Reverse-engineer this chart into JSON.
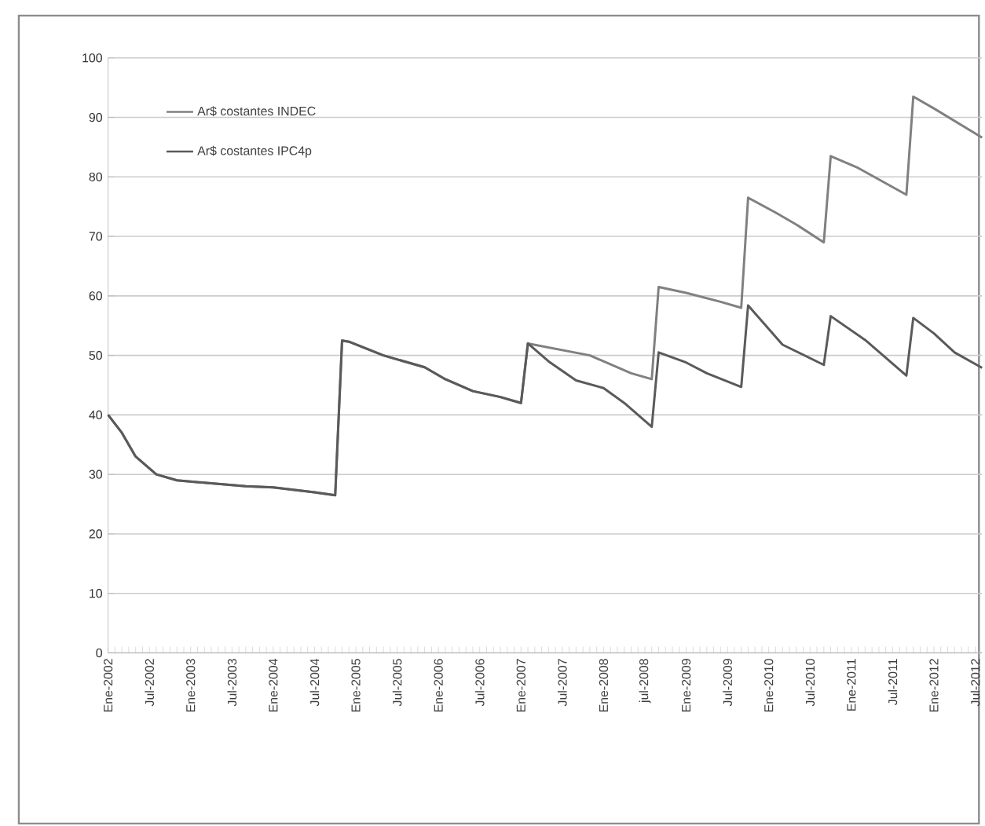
{
  "chart_data": {
    "type": "line",
    "xlim": [
      "2002-01",
      "2012-08"
    ],
    "ylim": [
      0,
      100
    ],
    "yticks": [
      0,
      10,
      20,
      30,
      40,
      50,
      60,
      70,
      80,
      90,
      100
    ],
    "xticks": [
      {
        "value": "2002-01",
        "label": "Ene-2002"
      },
      {
        "value": "2002-07",
        "label": "Jul-2002"
      },
      {
        "value": "2003-01",
        "label": "Ene-2003"
      },
      {
        "value": "2003-07",
        "label": "Jul-2003"
      },
      {
        "value": "2004-01",
        "label": "Ene-2004"
      },
      {
        "value": "2004-07",
        "label": "Jul-2004"
      },
      {
        "value": "2005-01",
        "label": "Ene-2005"
      },
      {
        "value": "2005-07",
        "label": "Jul-2005"
      },
      {
        "value": "2006-01",
        "label": "Ene-2006"
      },
      {
        "value": "2006-07",
        "label": "Jul-2006"
      },
      {
        "value": "2007-01",
        "label": "Ene-2007"
      },
      {
        "value": "2007-07",
        "label": "Jul-2007"
      },
      {
        "value": "2008-01",
        "label": "Ene-2008"
      },
      {
        "value": "2008-07",
        "label": "jul-2008"
      },
      {
        "value": "2009-01",
        "label": "Ene-2009"
      },
      {
        "value": "2009-07",
        "label": "Jul-2009"
      },
      {
        "value": "2010-01",
        "label": "Ene-2010"
      },
      {
        "value": "2010-07",
        "label": "Jul-2010"
      },
      {
        "value": "2011-01",
        "label": "Ene-2011"
      },
      {
        "value": "2011-07",
        "label": "Jul-2011"
      },
      {
        "value": "2012-01",
        "label": "Ene-2012"
      },
      {
        "value": "2012-07",
        "label": "Jul-2012"
      }
    ],
    "grid": "y",
    "legend": "top left",
    "marker": "none",
    "line_style": "solid",
    "series": [
      {
        "name": "Ar$ costantes INDEC",
        "color": "#808080",
        "x": [
          "2002-01",
          "2002-03",
          "2002-05",
          "2002-08",
          "2002-11",
          "2003-09",
          "2004-01",
          "2004-07",
          "2004-10",
          "2004-11",
          "2004-12",
          "2005-05",
          "2005-11",
          "2006-02",
          "2006-06",
          "2006-10",
          "2007-01",
          "2007-02",
          "2007-11",
          "2008-05",
          "2008-08",
          "2008-09",
          "2009-01",
          "2009-06",
          "2009-09",
          "2009-10",
          "2010-02",
          "2010-05",
          "2010-09",
          "2010-10",
          "2011-02",
          "2011-09",
          "2011-10",
          "2012-01",
          "2012-08"
        ],
        "values": [
          40,
          37,
          33,
          30,
          29,
          28,
          27.8,
          27,
          26.5,
          52.5,
          52.3,
          50,
          48,
          46,
          44,
          43,
          42,
          52,
          50,
          47,
          46,
          61.5,
          60.5,
          59,
          58,
          76.5,
          74,
          72,
          69,
          83.5,
          81.5,
          77,
          93.5,
          91.5,
          86.6
        ]
      },
      {
        "name": "Ar$ costantes IPC4p",
        "color": "#5a5a5a",
        "x": [
          "2002-01",
          "2002-03",
          "2002-05",
          "2002-08",
          "2002-11",
          "2003-09",
          "2004-01",
          "2004-07",
          "2004-10",
          "2004-11",
          "2004-12",
          "2005-05",
          "2005-11",
          "2006-02",
          "2006-06",
          "2006-10",
          "2007-01",
          "2007-02",
          "2007-05",
          "2007-09",
          "2008-01",
          "2008-04",
          "2008-08",
          "2008-09",
          "2009-01",
          "2009-04",
          "2009-09",
          "2009-10",
          "2010-03",
          "2010-09",
          "2010-10",
          "2011-03",
          "2011-09",
          "2011-10",
          "2012-01",
          "2012-04",
          "2012-08"
        ],
        "values": [
          40,
          37,
          33,
          30,
          29,
          28,
          27.8,
          27,
          26.5,
          52.5,
          52.3,
          50,
          48,
          46,
          44,
          43,
          42,
          52,
          49,
          45.8,
          44.5,
          42,
          38,
          50.5,
          48.8,
          47,
          44.7,
          58.4,
          51.8,
          48.4,
          56.6,
          52.6,
          46.6,
          56.3,
          53.7,
          50.5,
          47.9
        ]
      }
    ]
  }
}
